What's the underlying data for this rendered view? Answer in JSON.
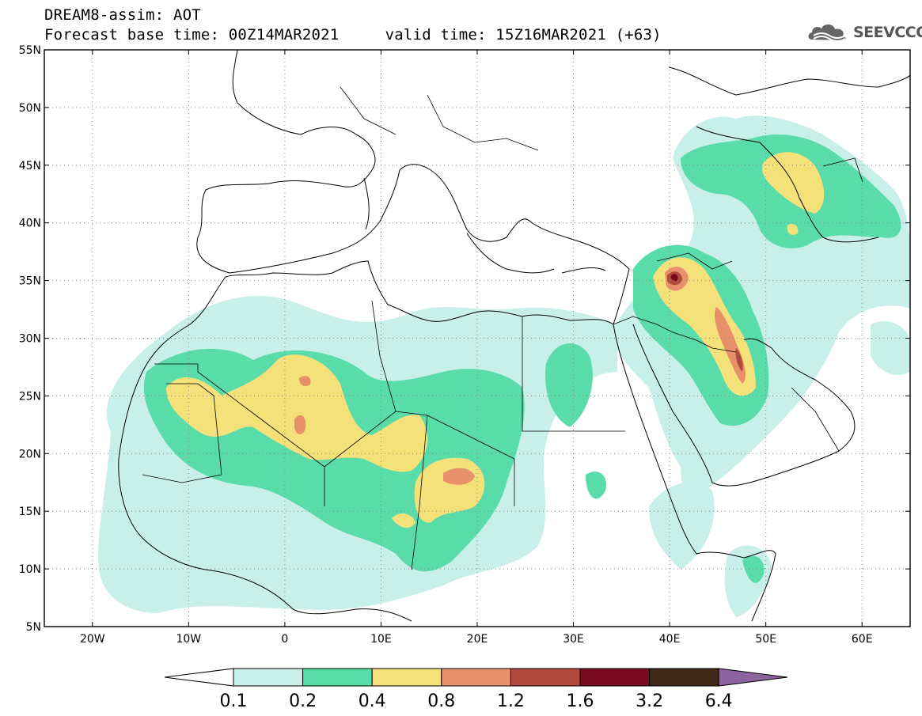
{
  "header": {
    "title": "DREAM8-assim: AOT",
    "subtitle": "Forecast base time: 00Z14MAR2021     valid time: 15Z16MAR2021 (+63)",
    "logo_text": "SEEVCCC"
  },
  "map": {
    "variable": "AOT",
    "lon_range": [
      -25,
      65
    ],
    "lat_range": [
      5,
      55
    ],
    "lon_ticks": [
      {
        "value": -20,
        "label": "20W"
      },
      {
        "value": -10,
        "label": "10W"
      },
      {
        "value": 0,
        "label": "0"
      },
      {
        "value": 10,
        "label": "10E"
      },
      {
        "value": 20,
        "label": "20E"
      },
      {
        "value": 30,
        "label": "30E"
      },
      {
        "value": 40,
        "label": "40E"
      },
      {
        "value": 50,
        "label": "50E"
      },
      {
        "value": 60,
        "label": "60E"
      }
    ],
    "lat_ticks": [
      {
        "value": 55,
        "label": "55N"
      },
      {
        "value": 50,
        "label": "50N"
      },
      {
        "value": 45,
        "label": "45N"
      },
      {
        "value": 40,
        "label": "40N"
      },
      {
        "value": 35,
        "label": "35N"
      },
      {
        "value": 30,
        "label": "30N"
      },
      {
        "value": 25,
        "label": "25N"
      },
      {
        "value": 20,
        "label": "20N"
      },
      {
        "value": 15,
        "label": "15N"
      },
      {
        "value": 10,
        "label": "10N"
      },
      {
        "value": 5,
        "label": "5N"
      }
    ],
    "grid": "dotted"
  },
  "colorbar": {
    "colors": [
      "#c8f0e8",
      "#5adcaa",
      "#f5e17a",
      "#e8906a",
      "#b04a3c",
      "#7a0a22",
      "#3e2818"
    ],
    "under_color": "#ffffff",
    "over_color": "#8c64a0",
    "labels": [
      "0.1",
      "0.2",
      "0.4",
      "0.8",
      "1.2",
      "1.6",
      "3.2",
      "6.4"
    ]
  }
}
